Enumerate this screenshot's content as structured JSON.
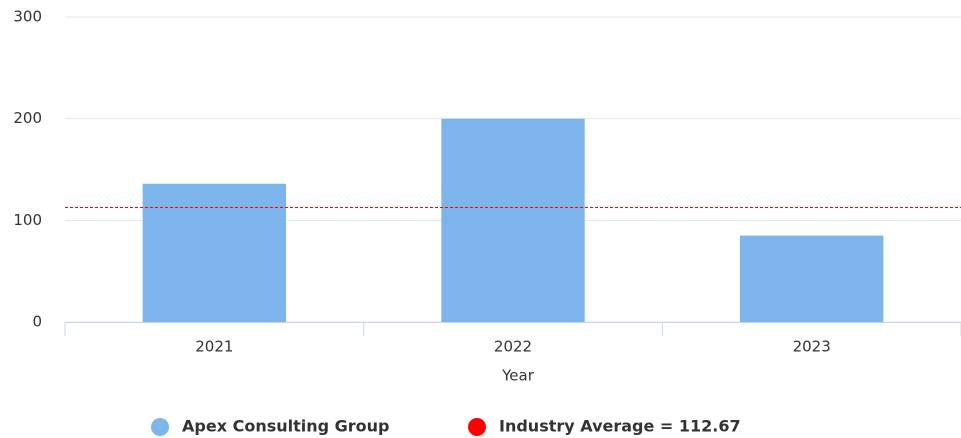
{
  "chart_data": {
    "type": "bar",
    "categories": [
      "2021",
      "2022",
      "2023"
    ],
    "series": [
      {
        "name": "Apex Consulting Group",
        "color": "#7cb5ec",
        "values": [
          136,
          200,
          85
        ]
      }
    ],
    "reference_line": {
      "name": "Industry Average = 112.67",
      "value": 112.67,
      "color": "#ff0000"
    },
    "x_label": "Year",
    "ylim": [
      0,
      300
    ],
    "yticks": [
      0,
      100,
      200,
      300
    ],
    "grid": true
  }
}
